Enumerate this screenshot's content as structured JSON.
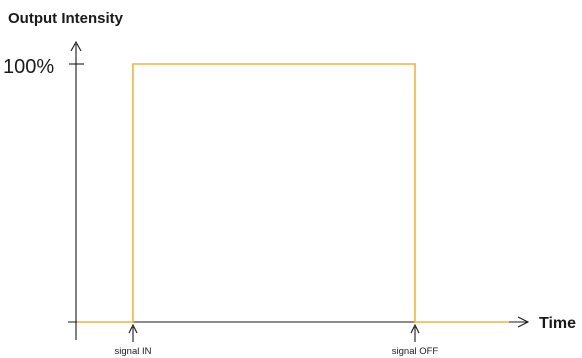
{
  "chart_data": {
    "type": "line",
    "ylabel": "Output Intensity",
    "xlabel": "Time",
    "y_tick_labels": [
      "100%"
    ],
    "yticks": [
      100
    ],
    "ylim": [
      0,
      100
    ],
    "series": [
      {
        "x_events": [
          "",
          "signal IN",
          "signal IN",
          "signal OFF",
          "signal OFF",
          ""
        ],
        "values": [
          0,
          0,
          100,
          100,
          0,
          0
        ]
      }
    ],
    "annotations": [
      "signal IN",
      "signal OFF"
    ],
    "grid": false,
    "legend": "none",
    "colors": {
      "trace": "#f2b43c",
      "axis": "#1a1a1a"
    }
  }
}
